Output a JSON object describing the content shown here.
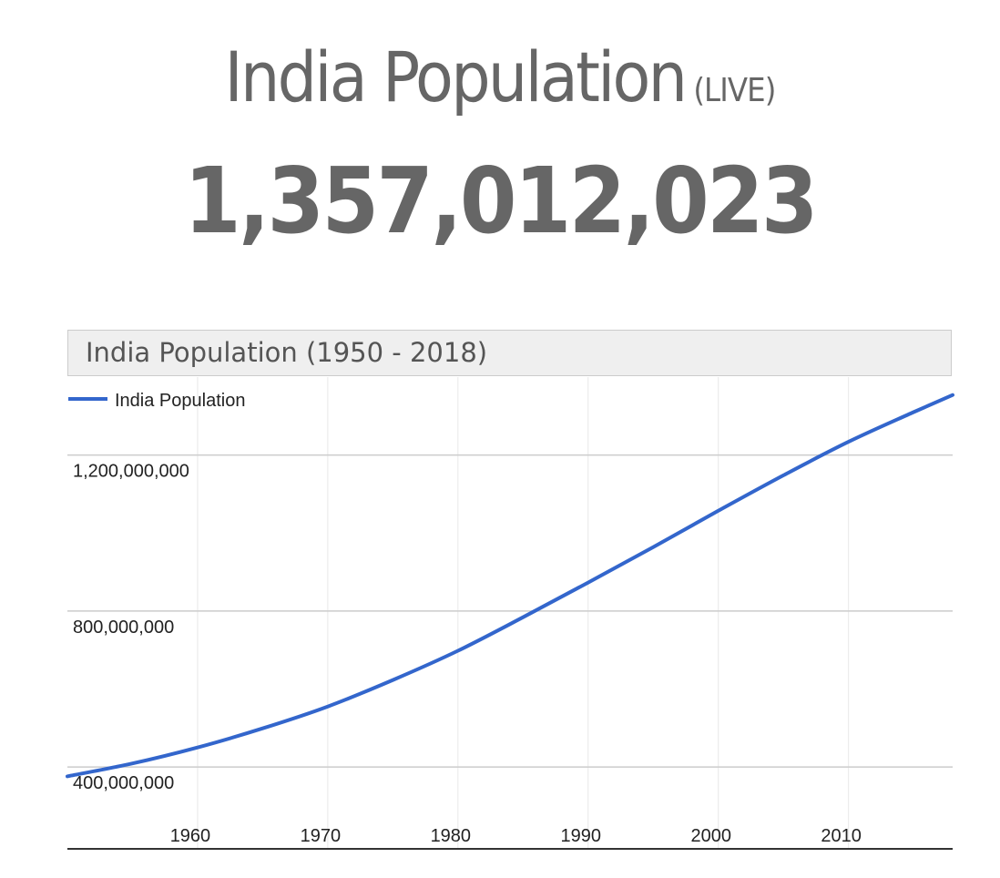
{
  "header": {
    "title": "India Population",
    "title_suffix": "(LIVE)",
    "counter": "1,357,012,023"
  },
  "chart_data": {
    "type": "line",
    "title": "India Population (1950 - 2018)",
    "xlabel": "",
    "ylabel": "",
    "xlim": [
      1950,
      2018
    ],
    "ylim": [
      190000000,
      1400000000
    ],
    "x_ticks": [
      1960,
      1970,
      1980,
      1990,
      2000,
      2010
    ],
    "x_tick_labels": [
      "1960",
      "1970",
      "1980",
      "1990",
      "2000",
      "2010"
    ],
    "y_ticks": [
      400000000,
      800000000,
      1200000000
    ],
    "y_tick_labels": [
      "400,000,000",
      "800,000,000",
      "1,200,000,000"
    ],
    "grid": true,
    "legend": "top-left",
    "colors": {
      "series": "#3366cc",
      "grid": "#cccccc",
      "axis": "#333333"
    },
    "series": [
      {
        "name": "India Population",
        "x": [
          1950,
          1955,
          1960,
          1965,
          1970,
          1975,
          1980,
          1985,
          1990,
          1995,
          2000,
          2005,
          2010,
          2015,
          2018
        ],
        "values": [
          376000000,
          409000000,
          450000000,
          499000000,
          555000000,
          623000000,
          698000000,
          784000000,
          873000000,
          964000000,
          1057000000,
          1148000000,
          1234000000,
          1310000000,
          1354000000
        ]
      }
    ]
  }
}
